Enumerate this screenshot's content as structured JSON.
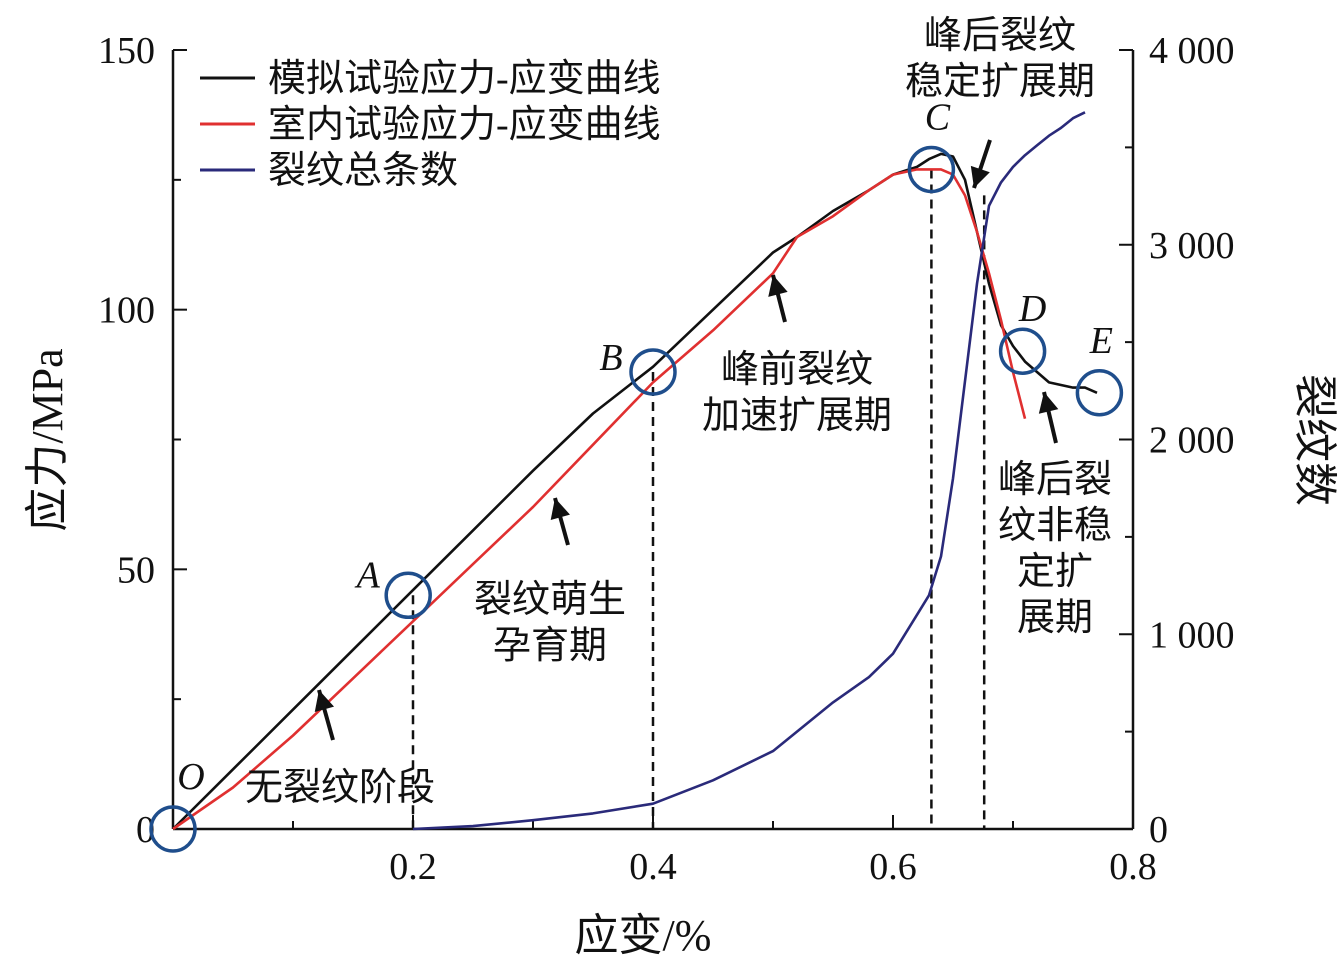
{
  "chart_data": {
    "type": "line",
    "xlabel": "应变/%",
    "ylabel": "应力/MPa",
    "y2label": "裂纹数",
    "xlim": [
      0,
      0.8
    ],
    "ylim": [
      0,
      150
    ],
    "y2lim": [
      0,
      4000
    ],
    "x_ticks": [
      {
        "value": 0.2,
        "label": "0.2"
      },
      {
        "value": 0.4,
        "label": "0.4"
      },
      {
        "value": 0.6,
        "label": "0.6"
      },
      {
        "value": 0.8,
        "label": "0.8"
      }
    ],
    "y_ticks": [
      {
        "value": 0,
        "label": "0"
      },
      {
        "value": 50,
        "label": "50"
      },
      {
        "value": 100,
        "label": "100"
      },
      {
        "value": 150,
        "label": "150"
      }
    ],
    "y2_ticks": [
      {
        "value": 0,
        "label": "0"
      },
      {
        "value": 1000,
        "label": "1 000"
      },
      {
        "value": 2000,
        "label": "2 000"
      },
      {
        "value": 3000,
        "label": "3 000"
      },
      {
        "value": 4000,
        "label": "4 000"
      }
    ],
    "legend_position": "top-left",
    "series": [
      {
        "name": "模拟试验应力-应变曲线",
        "color": "#111111",
        "axis": "left",
        "x": [
          0,
          0.05,
          0.1,
          0.15,
          0.2,
          0.25,
          0.3,
          0.35,
          0.4,
          0.45,
          0.5,
          0.52,
          0.55,
          0.58,
          0.6,
          0.62,
          0.63,
          0.64,
          0.65,
          0.66,
          0.67,
          0.68,
          0.69,
          0.7,
          0.71,
          0.72,
          0.73,
          0.74,
          0.75,
          0.76,
          0.77
        ],
        "y": [
          0,
          11.5,
          23,
          34.5,
          46,
          57.5,
          69,
          80,
          89,
          100,
          111,
          114,
          119,
          123,
          126,
          127.5,
          129,
          130,
          129.5,
          125,
          115,
          105,
          97,
          93,
          90,
          88,
          86,
          85.5,
          85,
          85,
          84
        ]
      },
      {
        "name": "室内试验应力-应变曲线",
        "color": "#e03030",
        "axis": "left",
        "x": [
          0,
          0.05,
          0.1,
          0.15,
          0.2,
          0.25,
          0.3,
          0.35,
          0.4,
          0.45,
          0.5,
          0.52,
          0.55,
          0.58,
          0.6,
          0.62,
          0.63,
          0.64,
          0.65,
          0.66,
          0.67,
          0.68,
          0.69,
          0.7,
          0.71
        ],
        "y": [
          0,
          8,
          18,
          29,
          40,
          51,
          62,
          74,
          86,
          96,
          107,
          114,
          118,
          123,
          126,
          127,
          127,
          127,
          126,
          122,
          115,
          107,
          98,
          88,
          79
        ]
      },
      {
        "name": "裂纹总条数",
        "color": "#2a2a7a",
        "axis": "right",
        "x": [
          0.2,
          0.25,
          0.3,
          0.35,
          0.4,
          0.45,
          0.5,
          0.55,
          0.58,
          0.6,
          0.62,
          0.63,
          0.64,
          0.65,
          0.66,
          0.67,
          0.68,
          0.69,
          0.7,
          0.71,
          0.72,
          0.73,
          0.74,
          0.75,
          0.76
        ],
        "y": [
          0,
          15,
          45,
          80,
          130,
          250,
          400,
          650,
          780,
          900,
          1100,
          1200,
          1400,
          1800,
          2300,
          2800,
          3200,
          3320,
          3400,
          3460,
          3510,
          3560,
          3600,
          3650,
          3680
        ]
      }
    ],
    "key_points": [
      {
        "label": "O",
        "x": 0,
        "y": 0
      },
      {
        "label": "A",
        "x": 0.196,
        "y": 45
      },
      {
        "label": "B",
        "x": 0.4,
        "y": 88
      },
      {
        "label": "C",
        "x": 0.632,
        "y": 127
      },
      {
        "label": "D",
        "x": 0.708,
        "y": 92
      },
      {
        "label": "E",
        "x": 0.772,
        "y": 84
      }
    ],
    "dashed_lines_x": [
      0.2,
      0.4,
      0.632,
      0.676
    ],
    "annotations": [
      {
        "lines": [
          "无裂纹阶段"
        ]
      },
      {
        "lines": [
          "裂纹萌生",
          "孕育期"
        ]
      },
      {
        "lines": [
          "峰前裂纹",
          "加速扩展期"
        ]
      },
      {
        "lines": [
          "峰后裂纹",
          "稳定扩展期"
        ]
      },
      {
        "lines": [
          "峰后裂",
          "纹非稳",
          "定扩",
          "展期"
        ]
      }
    ]
  }
}
